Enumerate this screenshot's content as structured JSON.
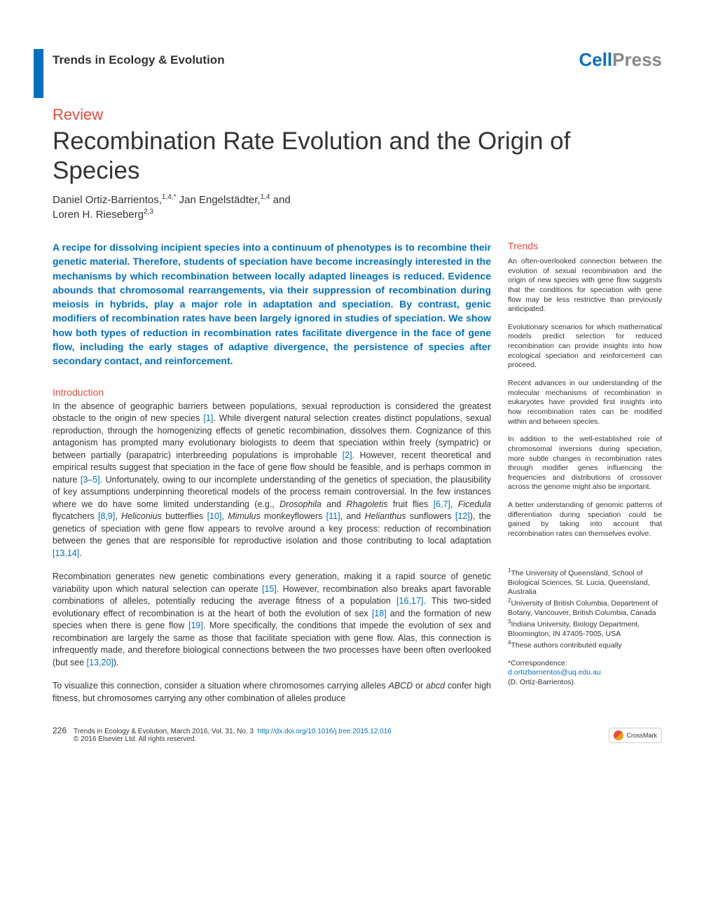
{
  "header": {
    "journal": "Trends in Ecology & Evolution",
    "publisher_cell": "Cell",
    "publisher_press": "Press"
  },
  "article": {
    "type_label": "Review",
    "title": "Recombination Rate Evolution and the Origin of Species",
    "authors_line1": "Daniel Ortiz-Barrientos,",
    "authors_sup1": "1,4,*",
    "authors_mid": " Jan Engelstädter,",
    "authors_sup2": "1,4",
    "authors_and": " and",
    "authors_line2": "Loren H. Rieseberg",
    "authors_sup3": "2,3"
  },
  "abstract": "A recipe for dissolving incipient species into a continuum of phenotypes is to recombine their genetic material. Therefore, students of speciation have become increasingly interested in the mechanisms by which recombination between locally adapted lineages is reduced. Evidence abounds that chromosomal rearrangements, via their suppression of recombination during meiosis in hybrids, play a major role in adaptation and speciation. By contrast, genic modifiers of recombination rates have been largely ignored in studies of speciation. We show how both types of reduction in recombination rates facilitate divergence in the face of gene flow, including the early stages of adaptive divergence, the persistence of species after secondary contact, and reinforcement.",
  "introduction": {
    "heading": "Introduction",
    "para1_a": "In the absence of geographic barriers between populations, sexual reproduction is considered the greatest obstacle to the origin of new species ",
    "para1_ref1": "[1]",
    "para1_b": ". While divergent natural selection creates distinct populations, sexual reproduction, through the homogenizing effects of genetic recombination, dissolves them. Cognizance of this antagonism has prompted many evolutionary biologists to deem that speciation within freely (sympatric) or between partially (parapatric) interbreeding populations is improbable ",
    "para1_ref2": "[2]",
    "para1_c": ". However, recent theoretical and empirical results suggest that speciation in the face of gene flow should be feasible, and is perhaps common in nature ",
    "para1_ref3": "[3–5]",
    "para1_d": ". Unfortunately, owing to our incomplete understanding of the genetics of speciation, the plausibility of key assumptions underpinning theoretical models of the process remain controversial. In the few instances where we do have some limited understanding (e.g., ",
    "para1_sp1": "Drosophila",
    "para1_e": " and ",
    "para1_sp2": "Rhagoletis",
    "para1_f": " fruit flies ",
    "para1_ref4": "[6,7]",
    "para1_g": ", ",
    "para1_sp3": "Ficedula",
    "para1_h": " flycatchers ",
    "para1_ref5": "[8,9]",
    "para1_i": ", ",
    "para1_sp4": "Heliconius",
    "para1_j": " butterflies ",
    "para1_ref6": "[10]",
    "para1_k": ", ",
    "para1_sp5": "Mimulus",
    "para1_l": " monkeyflowers ",
    "para1_ref7": "[11]",
    "para1_m": ", and ",
    "para1_sp6": "Helianthus",
    "para1_n": " sunflowers ",
    "para1_ref8": "[12]",
    "para1_o": "), the genetics of speciation with gene flow appears to revolve around a key process: reduction of recombination between the genes that are responsible for reproductive isolation and those contributing to local adaptation ",
    "para1_ref9": "[13,14]",
    "para1_p": ".",
    "para2_a": "Recombination generates new genetic combinations every generation, making it a rapid source of genetic variability upon which natural selection can operate ",
    "para2_ref1": "[15]",
    "para2_b": ". However, recombination also breaks apart favorable combinations of alleles, potentially reducing the average fitness of a population ",
    "para2_ref2": "[16,17]",
    "para2_c": ". This two-sided evolutionary effect of recombination is at the heart of both the evolution of sex ",
    "para2_ref3": "[18]",
    "para2_d": " and the formation of new species when there is gene flow ",
    "para2_ref4": "[19]",
    "para2_e": ". More specifically, the conditions that impede the evolution of sex and recombination are largely the same as those that facilitate speciation with gene flow. Alas, this connection is infrequently made, and therefore biological connections between the two processes have been often overlooked (but see ",
    "para2_ref5": "[13,20]",
    "para2_f": ").",
    "para3_a": "To visualize this connection, consider a situation where chromosomes carrying alleles ",
    "para3_sp1": "ABCD",
    "para3_b": " or ",
    "para3_sp2": "abcd",
    "para3_c": " confer high fitness, but chromosomes carrying any other combination of alleles produce"
  },
  "trends": {
    "heading": "Trends",
    "items": [
      "An often-overlooked connection between the evolution of sexual recombination and the origin of new species with gene flow suggests that the conditions for speciation with gene flow may be less restrictive than previously anticipated.",
      "Evolutionary scenarios for which mathematical models predict selection for reduced recombination can provide insights into how ecological speciation and reinforcement can proceed.",
      "Recent advances in our understanding of the molecular mechanisms of recombination in eukaryotes have provided first insights into how recombination rates can be modified within and between species.",
      "In addition to the well-established role of chromosomal inversions during speciation, more subtle changes in recombination rates through modifier genes influencing the frequencies and distributions of crossover across the genome might also be important.",
      "A better understanding of genomic patterns of differentiation during speciation could be gained by taking into account that recombination rates can themselves evolve."
    ]
  },
  "affiliations": {
    "a1_sup": "1",
    "a1": "The University of Queensland, School of Biological Sciences, St. Lucia, Queensland, Australia",
    "a2_sup": "2",
    "a2": "University of British Columbia, Department of Botany, Vancouver, British Columbia, Canada",
    "a3_sup": "3",
    "a3": "Indiana University, Biology Department, Bloomington, IN 47405-7005, USA",
    "a4_sup": "4",
    "a4": "These authors contributed equally"
  },
  "correspondence": {
    "label": "*Correspondence:",
    "email": "d.ortizbarrientos@uq.edu.au",
    "name": "(D. Ortiz-Barrientos)."
  },
  "footer": {
    "page": "226",
    "citation": "Trends in Ecology & Evolution, March 2016, Vol. 31, No. 3",
    "doi": "http://dx.doi.org/10.1016/j.tree.2015.12.016",
    "copyright": "© 2016 Elsevier Ltd. All rights reserved.",
    "crossmark": "CrossMark"
  },
  "colors": {
    "accent_blue": "#0070c0",
    "accent_red": "#e74c3c",
    "text": "#333333"
  }
}
